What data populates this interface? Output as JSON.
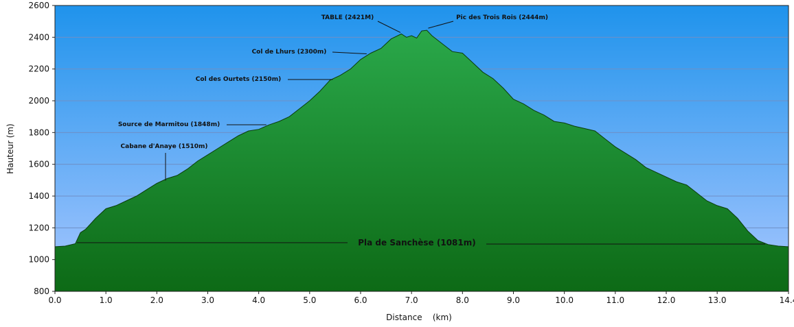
{
  "chart_data": {
    "type": "area",
    "xlabel": "Distance    (km)",
    "ylabel": "Hauteur (m)",
    "xlim": [
      0,
      14.4
    ],
    "ylim": [
      800,
      2600
    ],
    "x_ticks": [
      "0.0",
      "1.0",
      "2.0",
      "3.0",
      "4.0",
      "5.0",
      "6.0",
      "7.0",
      "8.0",
      "9.0",
      "10.0",
      "11.0",
      "12.0",
      "13.0",
      "14.4"
    ],
    "x_tick_values": [
      0,
      1,
      2,
      3,
      4,
      5,
      6,
      7,
      8,
      9,
      10,
      11,
      12,
      13,
      14.4
    ],
    "y_ticks": [
      "800",
      "1000",
      "1200",
      "1400",
      "1600",
      "1800",
      "2000",
      "2200",
      "2400",
      "2600"
    ],
    "y_tick_values": [
      800,
      1000,
      1200,
      1400,
      1600,
      1800,
      2000,
      2200,
      2400,
      2600
    ],
    "grid": true,
    "colors": {
      "sky_top": "#1f93ec",
      "sky_bottom": "#a9c7ff",
      "fill_top": "#2aa84a",
      "fill_bottom": "#0d6a16",
      "outline": "#0b3d0b"
    },
    "series": [
      {
        "x": [
          0,
          0.2,
          0.4,
          0.5,
          0.6,
          0.8,
          1.0,
          1.2,
          1.4,
          1.6,
          1.8,
          2.0,
          2.2,
          2.4,
          2.6,
          2.8,
          3.0,
          3.2,
          3.4,
          3.6,
          3.8,
          4.0,
          4.2,
          4.4,
          4.6,
          4.8,
          5.0,
          5.2,
          5.4,
          5.6,
          5.8,
          6.0,
          6.2,
          6.4,
          6.6,
          6.8,
          6.9,
          7.0,
          7.1,
          7.2,
          7.3,
          7.4,
          7.6,
          7.8,
          8.0,
          8.2,
          8.4,
          8.6,
          8.8,
          9.0,
          9.2,
          9.4,
          9.6,
          9.8,
          10.0,
          10.2,
          10.4,
          10.6,
          10.8,
          11.0,
          11.2,
          11.4,
          11.6,
          11.8,
          12.0,
          12.2,
          12.4,
          12.6,
          12.8,
          13.0,
          13.2,
          13.4,
          13.6,
          13.8,
          14.0,
          14.2,
          14.4
        ],
        "y": [
          1081,
          1085,
          1100,
          1170,
          1190,
          1260,
          1320,
          1340,
          1370,
          1400,
          1440,
          1480,
          1510,
          1530,
          1570,
          1620,
          1660,
          1700,
          1740,
          1780,
          1810,
          1820,
          1848,
          1870,
          1900,
          1950,
          2000,
          2060,
          2130,
          2160,
          2200,
          2260,
          2300,
          2330,
          2390,
          2421,
          2400,
          2410,
          2395,
          2440,
          2444,
          2410,
          2360,
          2310,
          2300,
          2240,
          2180,
          2140,
          2080,
          2010,
          1980,
          1940,
          1910,
          1870,
          1860,
          1840,
          1825,
          1810,
          1760,
          1710,
          1670,
          1630,
          1580,
          1550,
          1520,
          1490,
          1470,
          1420,
          1370,
          1340,
          1320,
          1260,
          1180,
          1120,
          1095,
          1085,
          1081
        ]
      }
    ],
    "annotations": [
      {
        "text": "TABLE (2421M)",
        "x": 6.85,
        "y": 2421
      },
      {
        "text": "Pic des Trois Rois (2444m)",
        "x": 7.3,
        "y": 2444
      },
      {
        "text": "Col de Lhurs (2300m)",
        "x": 6.2,
        "y": 2300
      },
      {
        "text": "Col des Ourtets (2150m)",
        "x": 5.45,
        "y": 2150
      },
      {
        "text": "Source de Marmitou (1848m)",
        "x": 4.2,
        "y": 1848
      },
      {
        "text": "Cabane d'Anaye (1510m)",
        "x": 2.2,
        "y": 1510
      },
      {
        "text": "Pla de Sanchèse (1081m)",
        "x": 0.45,
        "y": 1081
      }
    ]
  }
}
